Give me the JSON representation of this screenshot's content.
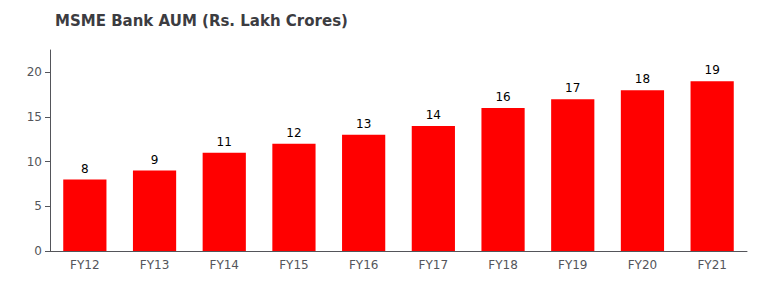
{
  "chart_data": {
    "type": "bar",
    "title": "MSME Bank AUM (Rs. Lakh Crores)",
    "categories": [
      "FY12",
      "FY13",
      "FY14",
      "FY15",
      "FY16",
      "FY17",
      "FY18",
      "FY19",
      "FY20",
      "FY21"
    ],
    "values": [
      8,
      9,
      11,
      12,
      13,
      14,
      16,
      17,
      18,
      19
    ],
    "color": "#ff0000",
    "ylim": [
      0,
      22.5
    ],
    "yticks": [
      0,
      5,
      10,
      15,
      20
    ],
    "grid": false,
    "data_labels": true
  }
}
